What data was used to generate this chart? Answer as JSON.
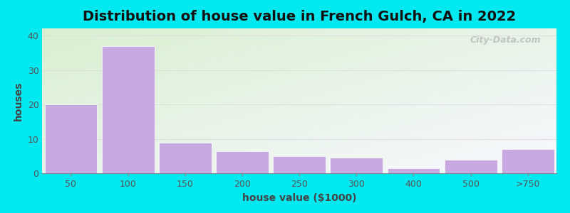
{
  "title": "Distribution of house value in French Gulch, CA in 2022",
  "xlabel": "house value ($1000)",
  "ylabel": "houses",
  "categories": [
    "50",
    "100",
    "150",
    "200",
    "250",
    "300",
    "400",
    "500",
    ">750"
  ],
  "values": [
    20,
    37,
    9,
    6.5,
    5,
    4.5,
    1.5,
    4,
    7
  ],
  "bar_color": "#c8a8e0",
  "bar_edge_color": "#c8a8e0",
  "ylim": [
    0,
    42
  ],
  "yticks": [
    0,
    10,
    20,
    30,
    40
  ],
  "background_outer": "#00e8f0",
  "background_top_left": "#d8f0d0",
  "background_bottom_right": "#f8f8ff",
  "grid_color": "#dddddd",
  "title_fontsize": 14,
  "axis_label_fontsize": 10,
  "tick_fontsize": 9,
  "watermark_text": "City-Data.com",
  "watermark_color": "#bbbbbb",
  "fig_width": 8.0,
  "fig_height": 3.0,
  "fig_dpi": 100
}
